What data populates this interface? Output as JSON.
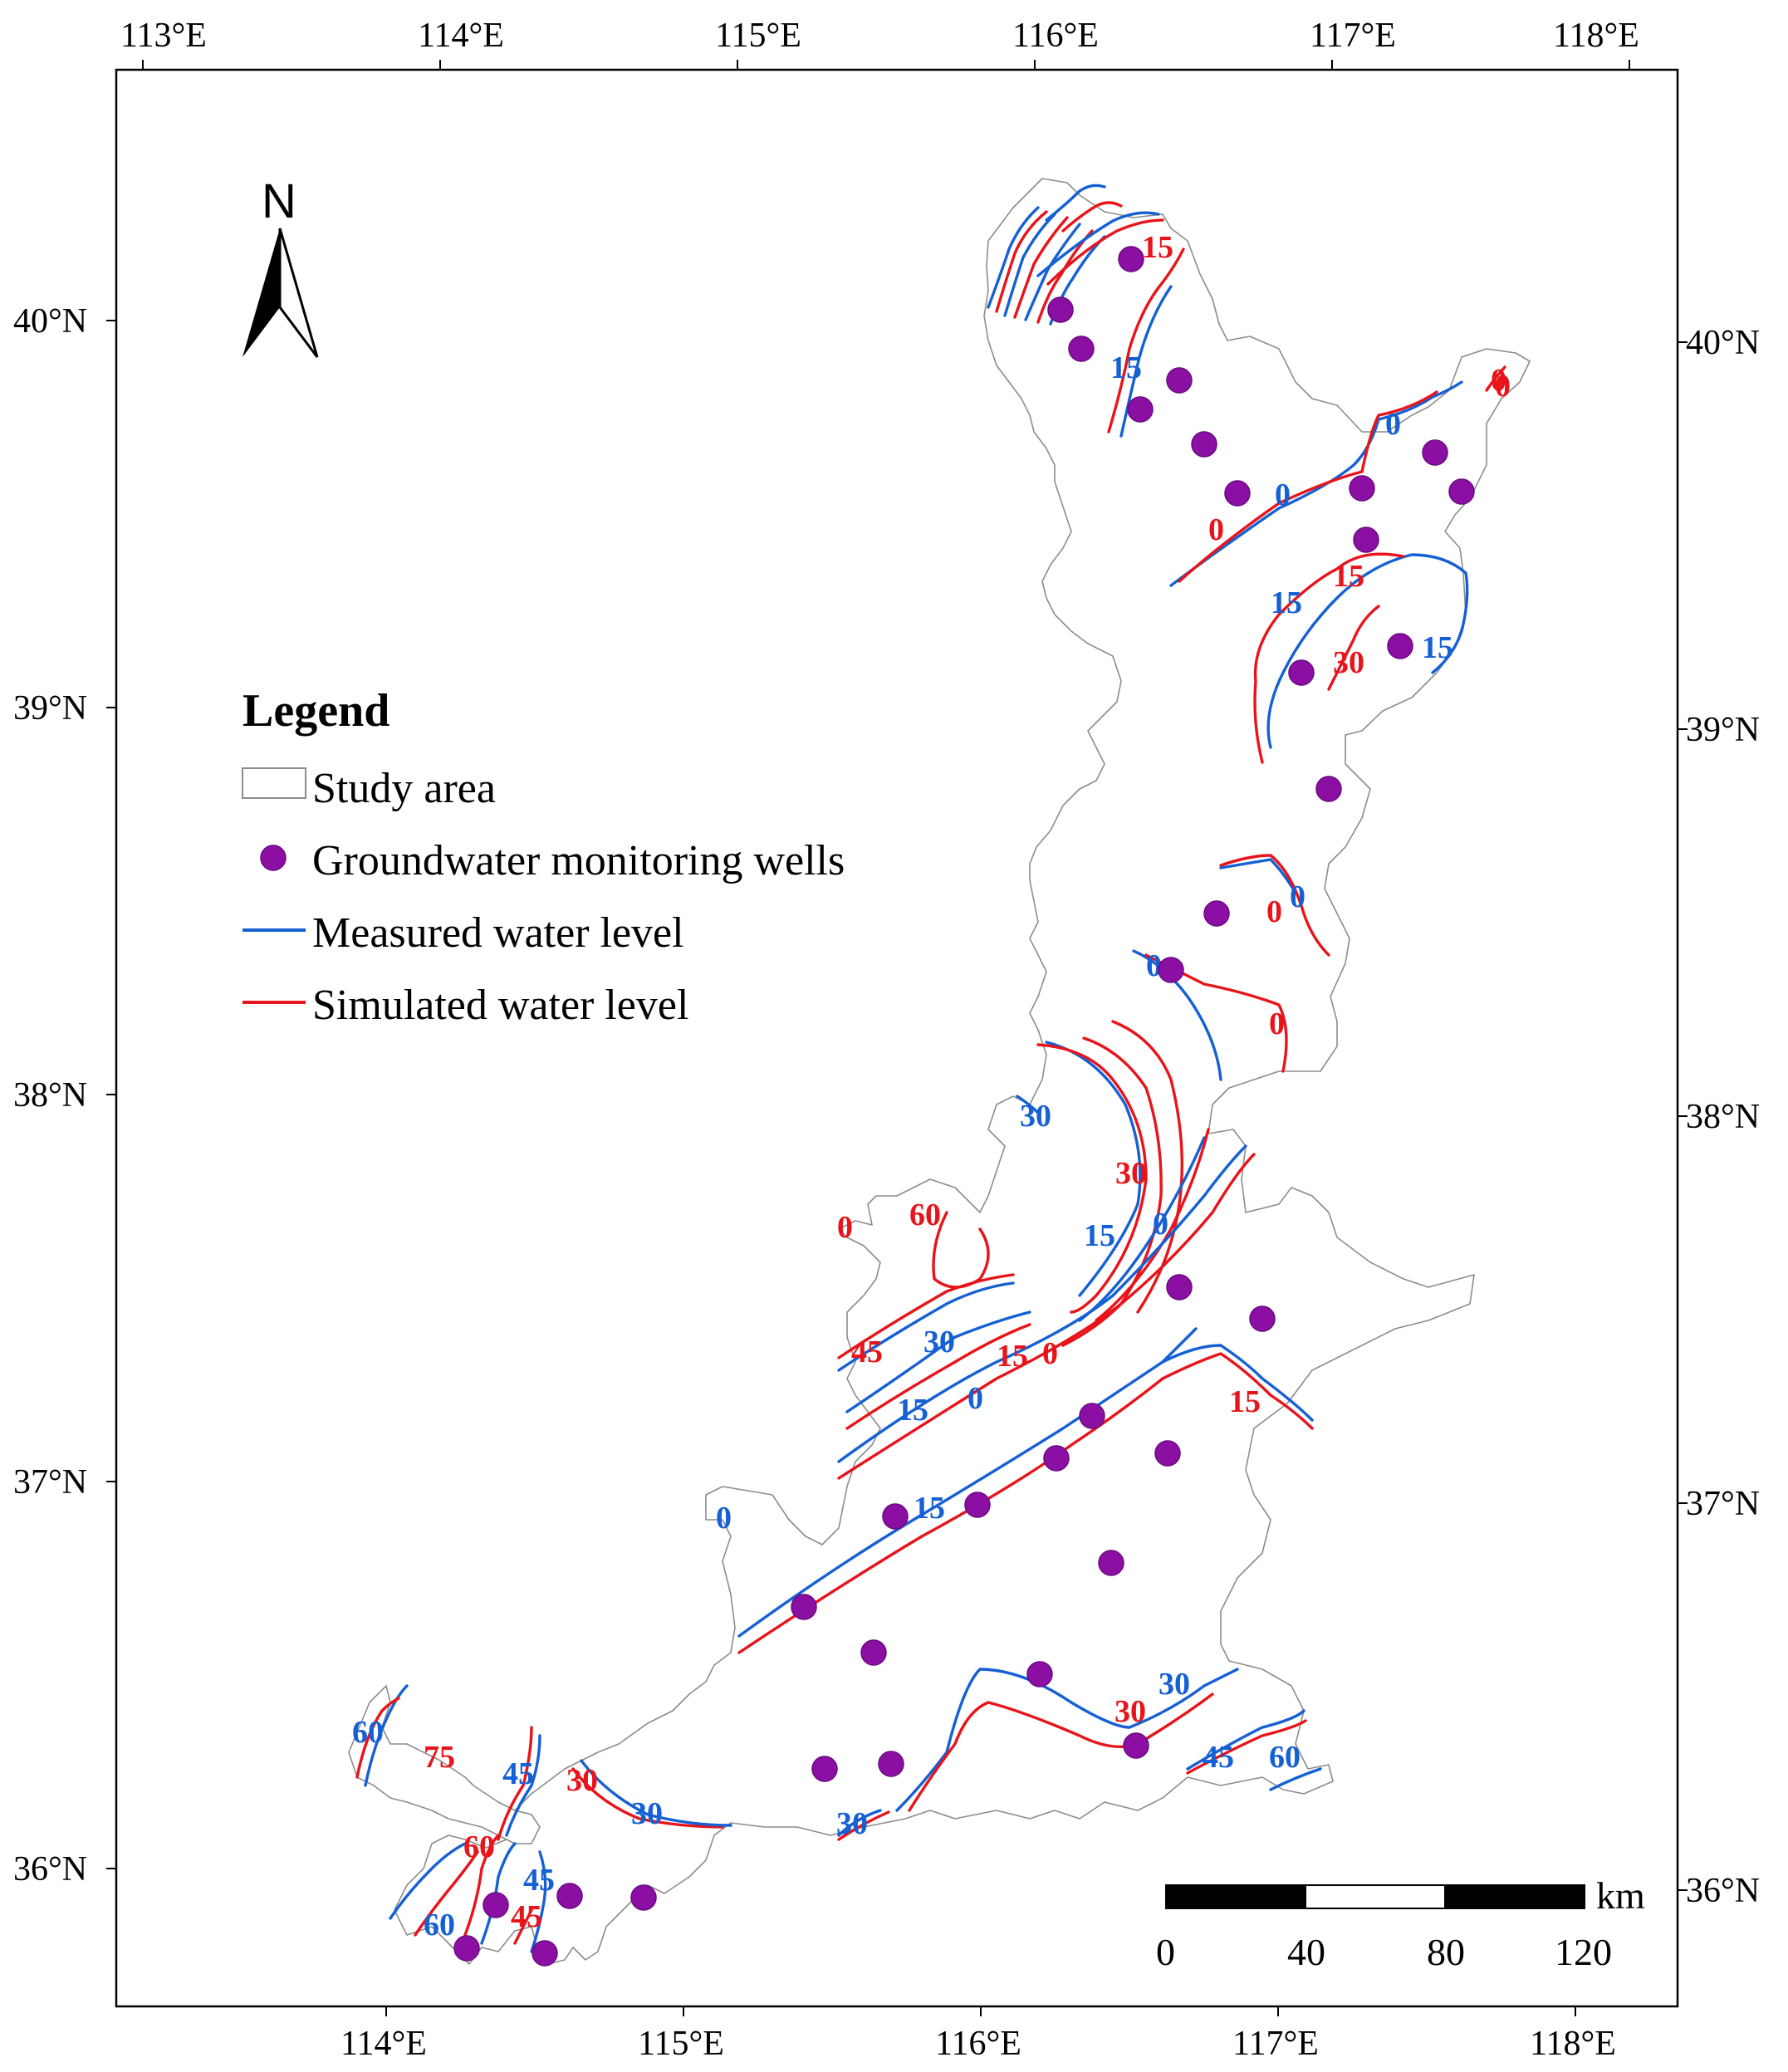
{
  "map": {
    "lon_labels_top": [
      "113°E",
      "114°E",
      "115°E",
      "116°E",
      "117°E",
      "118°E"
    ],
    "lon_labels_bottom": [
      "114°E",
      "115°E",
      "116°E",
      "117°E",
      "118°E"
    ],
    "lat_labels_left": [
      "40°N",
      "39°N",
      "38°N",
      "37°N",
      "36°N"
    ],
    "lat_labels_right": [
      "40°N",
      "39°N",
      "38°N",
      "37°N",
      "36°N"
    ],
    "north_label": "N",
    "scale_bar": {
      "ticks": [
        "0",
        "40",
        "80",
        "120"
      ],
      "unit": "km"
    },
    "legend": {
      "title": "Legend",
      "items": [
        {
          "label": "Study area",
          "symbol": "polygon"
        },
        {
          "label": "Groundwater monitoring wells",
          "symbol": "point"
        },
        {
          "label": "Measured water level",
          "symbol": "line"
        },
        {
          "label": "Simulated water level",
          "symbol": "line"
        }
      ]
    },
    "colors": {
      "measured": "#1560d4",
      "simulated": "#e8141a",
      "well": "#8b0fa3",
      "boundary": "#888888",
      "frame": "#000000"
    },
    "contour_labels": {
      "measured": [
        "0",
        "15",
        "0",
        "15",
        "15",
        "0",
        "0",
        "30",
        "15",
        "0",
        "30",
        "15",
        "0",
        "15",
        "0",
        "30",
        "45",
        "60",
        "60",
        "45",
        "45",
        "30",
        "30",
        "60"
      ],
      "simulated": [
        "15",
        "0",
        "0",
        "15",
        "30",
        "0",
        "0",
        "0",
        "30",
        "60",
        "45",
        "15",
        "0",
        "15",
        "30",
        "75",
        "30",
        "60",
        "45",
        "0"
      ]
    }
  }
}
